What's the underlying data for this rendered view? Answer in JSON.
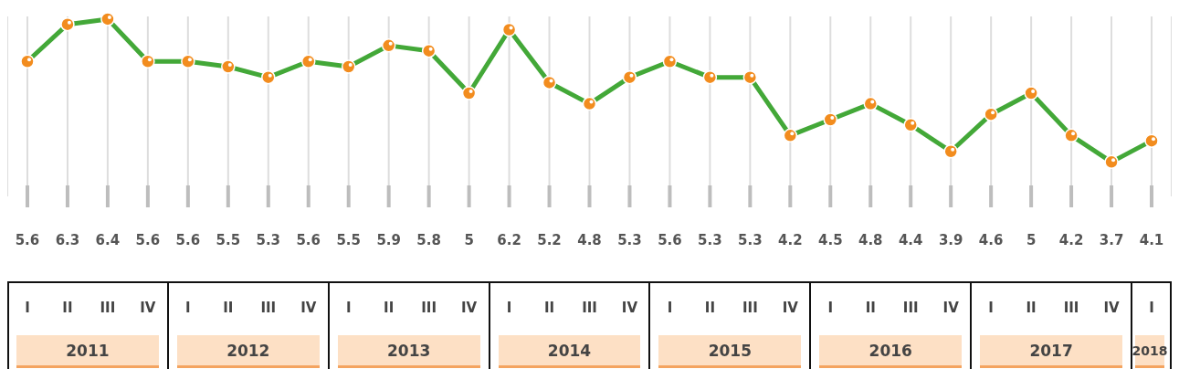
{
  "chart_data": {
    "type": "line",
    "categories": [
      "I",
      "II",
      "III",
      "IV",
      "I",
      "II",
      "III",
      "IV",
      "I",
      "II",
      "III",
      "IV",
      "I",
      "II",
      "III",
      "IV",
      "I",
      "II",
      "III",
      "IV",
      "I",
      "II",
      "III",
      "IV",
      "I",
      "II",
      "III",
      "IV",
      "I"
    ],
    "values": [
      5.6,
      6.3,
      6.4,
      5.6,
      5.6,
      5.5,
      5.3,
      5.6,
      5.5,
      5.9,
      5.8,
      5,
      6.2,
      5.2,
      4.8,
      5.3,
      5.6,
      5.3,
      5.3,
      4.2,
      4.5,
      4.8,
      4.4,
      3.9,
      4.6,
      5,
      4.2,
      3.7,
      4.1
    ],
    "color": "#43a838",
    "marker": "circle",
    "data_labels": true,
    "grid": "x",
    "annotations": [
      "2011",
      "2012",
      "2013",
      "2014",
      "2015",
      "2016",
      "2017",
      "2018"
    ]
  }
}
